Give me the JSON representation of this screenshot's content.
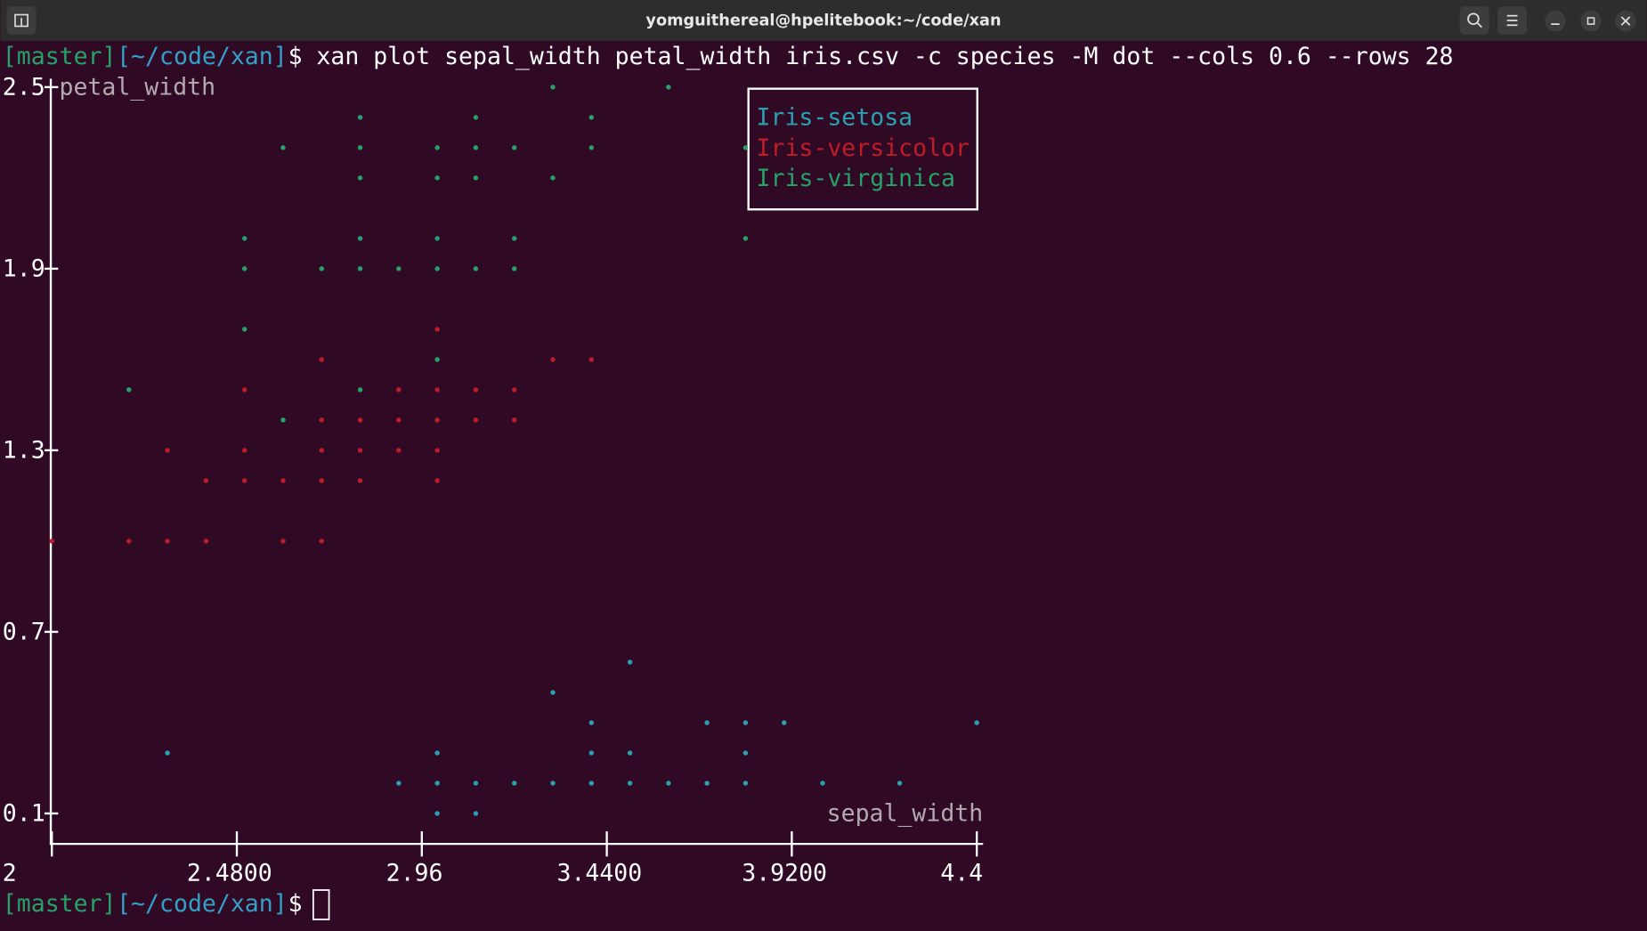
{
  "window": {
    "title": "yomguithereal@hpelitebook:~/code/xan"
  },
  "terminal": {
    "prompt_branch": "[master]",
    "prompt_dir": "[~/code/xan]",
    "prompt_symbol": "$",
    "command": "xan plot sepal_width petal_width iris.csv -c species -M dot --cols 0.6 --rows 28"
  },
  "chart_data": {
    "type": "scatter",
    "xlabel": "sepal_width",
    "ylabel": "petal_width",
    "xlim": [
      2,
      4.4
    ],
    "ylim": [
      0.1,
      2.5
    ],
    "xticks": [
      2,
      {
        "value": 2.48,
        "label": "2.4800"
      },
      2.96,
      {
        "value": 3.44,
        "label": "3.4400"
      },
      {
        "value": 3.92,
        "label": "3.9200"
      },
      4.4
    ],
    "yticks": [
      2.5,
      1.9,
      1.3,
      0.7,
      0.1
    ],
    "series": [
      {
        "name": "Iris-setosa",
        "color": "#2aa1b3",
        "x": [
          3.5,
          3.3,
          3.4,
          3.7,
          3.8,
          3.9,
          4.4,
          2.3,
          3.0,
          3.4,
          3.5,
          3.8,
          2.9,
          3.0,
          3.1,
          3.2,
          3.3,
          3.4,
          3.5,
          3.6,
          3.7,
          3.8,
          4.0,
          4.2,
          3.0,
          3.1
        ],
        "values": [
          0.6,
          0.5,
          0.4,
          0.4,
          0.4,
          0.4,
          0.4,
          0.3,
          0.3,
          0.3,
          0.3,
          0.3,
          0.2,
          0.2,
          0.2,
          0.2,
          0.2,
          0.2,
          0.2,
          0.2,
          0.2,
          0.2,
          0.2,
          0.2,
          0.1,
          0.1
        ]
      },
      {
        "name": "Iris-versicolor",
        "color": "#c01c28",
        "x": [
          3.0,
          2.7,
          3.3,
          3.4,
          2.5,
          2.9,
          3.0,
          3.1,
          3.2,
          2.7,
          2.8,
          2.9,
          3.0,
          3.1,
          3.2,
          2.3,
          2.5,
          2.7,
          2.8,
          2.9,
          3.0,
          2.4,
          2.5,
          2.6,
          2.7,
          2.8,
          3.0,
          2.0,
          2.2,
          2.3,
          2.4,
          2.6,
          2.7
        ],
        "values": [
          1.7,
          1.6,
          1.6,
          1.6,
          1.5,
          1.5,
          1.5,
          1.5,
          1.5,
          1.4,
          1.4,
          1.4,
          1.4,
          1.4,
          1.4,
          1.3,
          1.3,
          1.3,
          1.3,
          1.3,
          1.3,
          1.2,
          1.2,
          1.2,
          1.2,
          1.2,
          1.2,
          1.0,
          1.0,
          1.0,
          1.0,
          1.0,
          1.0
        ]
      },
      {
        "name": "Iris-virginica",
        "color": "#26a269",
        "x": [
          3.3,
          3.6,
          2.8,
          3.1,
          3.4,
          2.6,
          2.8,
          3.0,
          3.1,
          3.2,
          3.4,
          3.8,
          2.8,
          3.0,
          3.1,
          3.3,
          2.5,
          2.8,
          3.0,
          3.2,
          3.8,
          2.5,
          2.7,
          2.8,
          2.9,
          3.0,
          3.1,
          3.2,
          2.5,
          3.0,
          2.2,
          2.8,
          2.6
        ],
        "values": [
          2.5,
          2.5,
          2.4,
          2.4,
          2.4,
          2.3,
          2.3,
          2.3,
          2.3,
          2.3,
          2.3,
          2.3,
          2.2,
          2.2,
          2.2,
          2.2,
          2.0,
          2.0,
          2.0,
          2.0,
          2.0,
          1.9,
          1.9,
          1.9,
          1.9,
          1.9,
          1.9,
          1.9,
          1.7,
          1.6,
          1.5,
          1.5,
          1.4
        ]
      }
    ]
  }
}
